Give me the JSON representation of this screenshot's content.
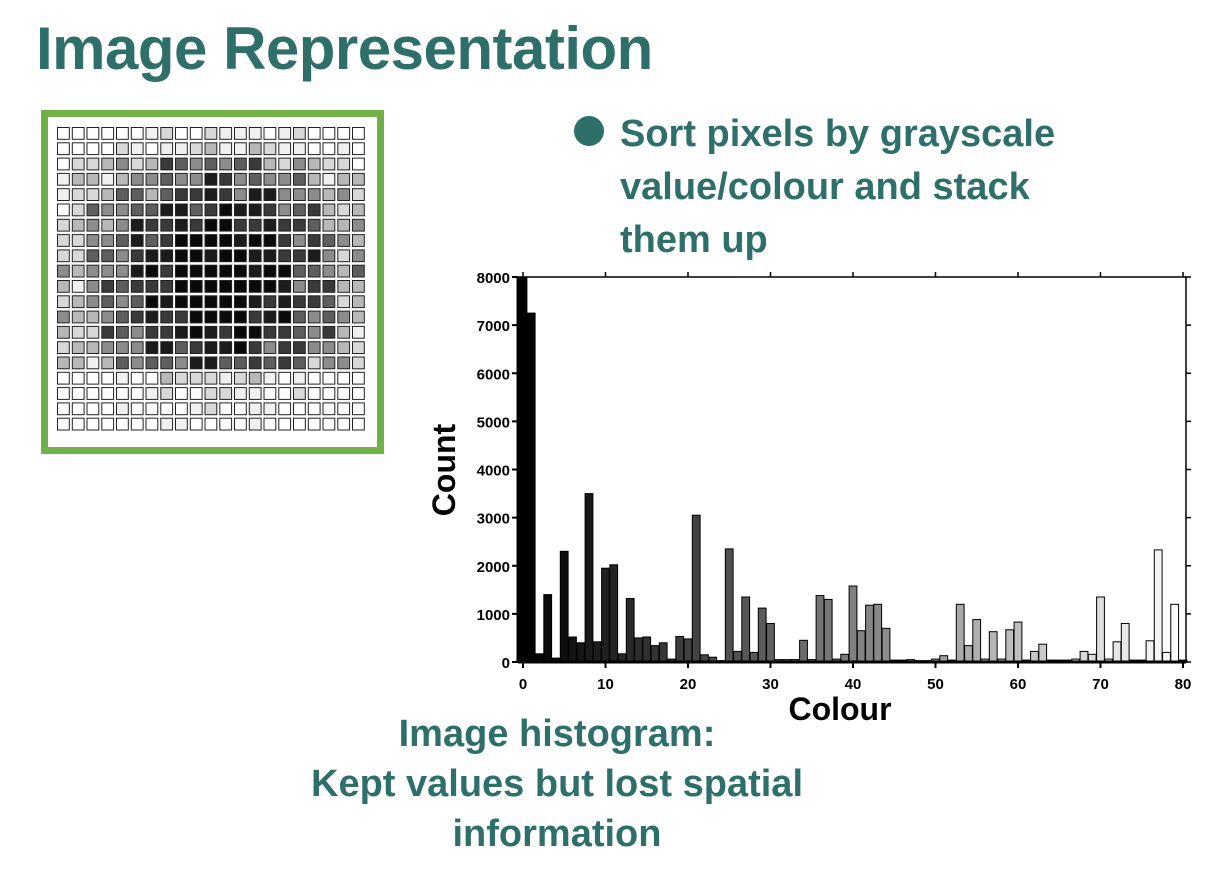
{
  "slide": {
    "title": "Image Representation",
    "title_color": "#2e6f6a",
    "frame_color": "#72b14a"
  },
  "bullet": {
    "lines": [
      "Sort pixels by grayscale",
      "value/colour and stack",
      "them up"
    ],
    "color": "#2e6f6a"
  },
  "pixel_grid_icon": "grayscale-pixel-grid",
  "caption": {
    "lines": [
      "Image histogram:",
      "Kept values but lost spatial",
      "information"
    ]
  },
  "chart_data": {
    "type": "bar",
    "xlabel": "Colour",
    "ylabel": "Count",
    "xlim": [
      0,
      80
    ],
    "ylim": [
      0,
      8000
    ],
    "x_ticks": [
      "0",
      "10",
      "20",
      "30",
      "40",
      "50",
      "60",
      "70",
      "80"
    ],
    "y_ticks": [
      "0",
      "1000",
      "2000",
      "3000",
      "4000",
      "5000",
      "6000",
      "7000",
      "8000"
    ],
    "grid": false,
    "x": [
      0,
      1,
      2,
      3,
      4,
      5,
      6,
      7,
      8,
      9,
      10,
      11,
      12,
      13,
      14,
      15,
      16,
      17,
      18,
      19,
      20,
      21,
      22,
      23,
      24,
      25,
      26,
      27,
      28,
      29,
      30,
      31,
      32,
      33,
      34,
      35,
      36,
      37,
      38,
      39,
      40,
      41,
      42,
      43,
      44,
      45,
      46,
      47,
      48,
      49,
      50,
      51,
      52,
      53,
      54,
      55,
      56,
      57,
      58,
      59,
      60,
      61,
      62,
      63,
      64,
      65,
      66,
      67,
      68,
      69,
      70,
      71,
      72,
      73,
      74,
      75,
      76,
      77,
      78,
      79,
      80
    ],
    "values": [
      8000,
      7250,
      170,
      1400,
      80,
      2300,
      520,
      400,
      3500,
      420,
      1950,
      2020,
      170,
      1320,
      500,
      520,
      340,
      400,
      60,
      530,
      480,
      3050,
      150,
      100,
      30,
      2350,
      220,
      1350,
      200,
      1120,
      800,
      50,
      50,
      50,
      450,
      50,
      1380,
      1300,
      60,
      160,
      1580,
      650,
      1180,
      1200,
      700,
      40,
      40,
      50,
      30,
      30,
      60,
      130,
      40,
      1200,
      340,
      880,
      60,
      630,
      60,
      670,
      830,
      40,
      220,
      370,
      40,
      40,
      40,
      60,
      220,
      160,
      1350,
      60,
      420,
      800,
      40,
      40,
      440,
      2330,
      200,
      1200,
      40
    ]
  }
}
